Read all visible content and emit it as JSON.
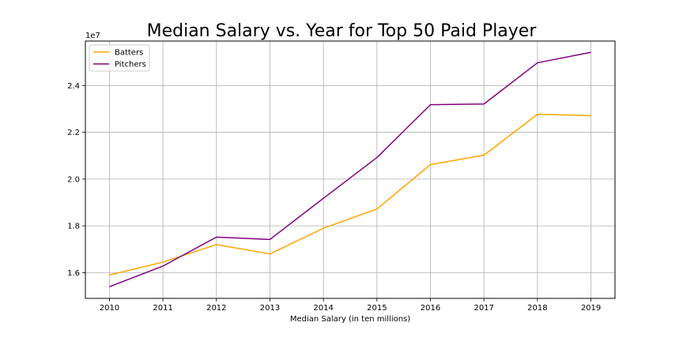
{
  "chart_data": {
    "type": "line",
    "title": "Median Salary vs. Year for Top 50 Paid Player",
    "xlabel": "Median Salary (in ten millions)",
    "ylabel": "",
    "y_offset_label": "1e7",
    "x": [
      2010,
      2011,
      2012,
      2013,
      2014,
      2015,
      2016,
      2017,
      2018,
      2019
    ],
    "x_tick_labels": [
      "2010",
      "2011",
      "2012",
      "2013",
      "2014",
      "2015",
      "2016",
      "2017",
      "2018",
      "2019"
    ],
    "y_ticks": [
      1.6,
      1.8,
      2.0,
      2.2,
      2.4
    ],
    "y_tick_labels": [
      "1.6",
      "1.8",
      "2.0",
      "2.2",
      "2.4"
    ],
    "xlim": [
      2009.55,
      2019.45
    ],
    "ylim": [
      1.49,
      2.59
    ],
    "grid": true,
    "legend_position": "upper-left",
    "series": [
      {
        "name": "Batters",
        "color": "#ffa500",
        "values": [
          1.59,
          1.645,
          1.72,
          1.68,
          1.79,
          1.872,
          2.062,
          2.102,
          2.277,
          2.271
        ]
      },
      {
        "name": "Pitchers",
        "color": "#800080",
        "values": [
          1.54,
          1.628,
          1.752,
          1.742,
          1.918,
          2.092,
          2.318,
          2.321,
          2.497,
          2.542
        ]
      }
    ]
  }
}
